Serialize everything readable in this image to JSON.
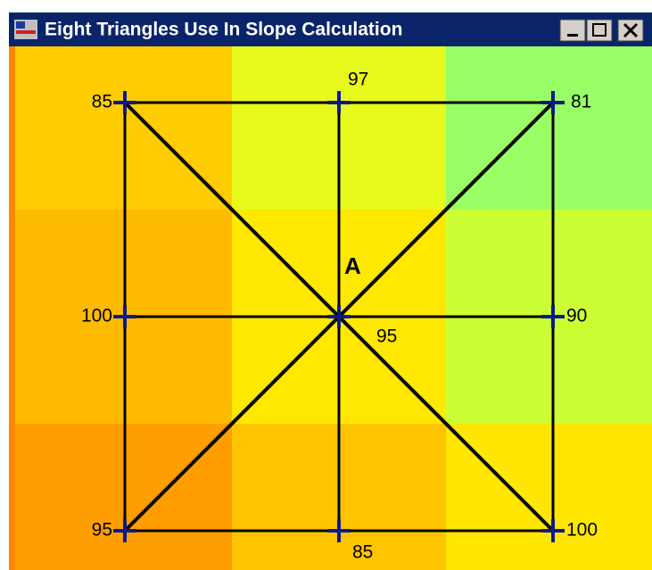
{
  "window": {
    "title": "Eight Triangles Use In Slope Calculation"
  },
  "diagram": {
    "center_name": "A",
    "nodes": [
      {
        "label": "85"
      },
      {
        "label": "97"
      },
      {
        "label": "81"
      },
      {
        "label": "100"
      },
      {
        "label": "95"
      },
      {
        "label": "90"
      },
      {
        "label": "95"
      },
      {
        "label": "85"
      },
      {
        "label": "100"
      }
    ]
  }
}
